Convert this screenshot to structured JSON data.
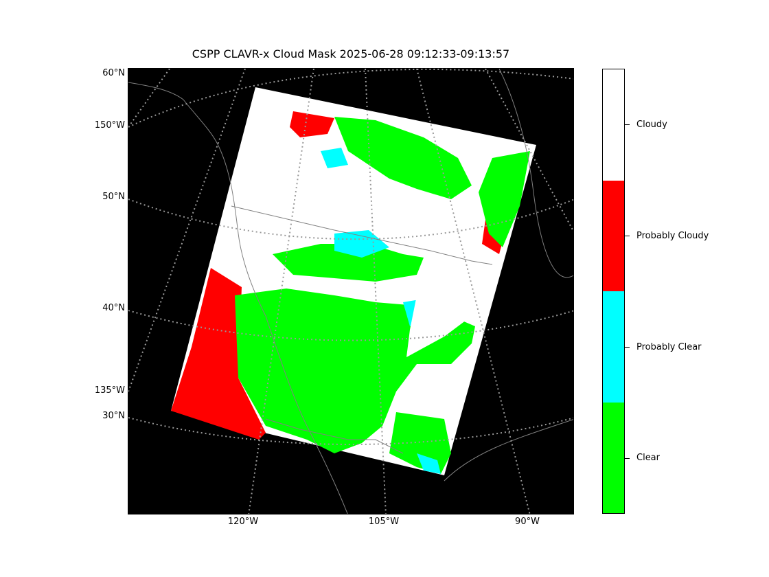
{
  "title": "CSPP CLAVR-x Cloud Mask 2025-06-28 09:12:33-09:13:57",
  "lat_labels": [
    "60°N",
    "150°W",
    "50°N",
    "40°N",
    "135°W",
    "30°N"
  ],
  "lon_labels": [
    "120°W",
    "105°W",
    "90°W"
  ],
  "colorbar": {
    "categories": [
      {
        "label": "Cloudy",
        "color": "#ffffff"
      },
      {
        "label": "Probably Cloudy",
        "color": "#ff0000"
      },
      {
        "label": "Probably Clear",
        "color": "#00ffff"
      },
      {
        "label": "Clear",
        "color": "#00ff00"
      }
    ]
  },
  "colors": {
    "background": "#000000",
    "coastline": "#808080",
    "graticule": "#999999"
  }
}
